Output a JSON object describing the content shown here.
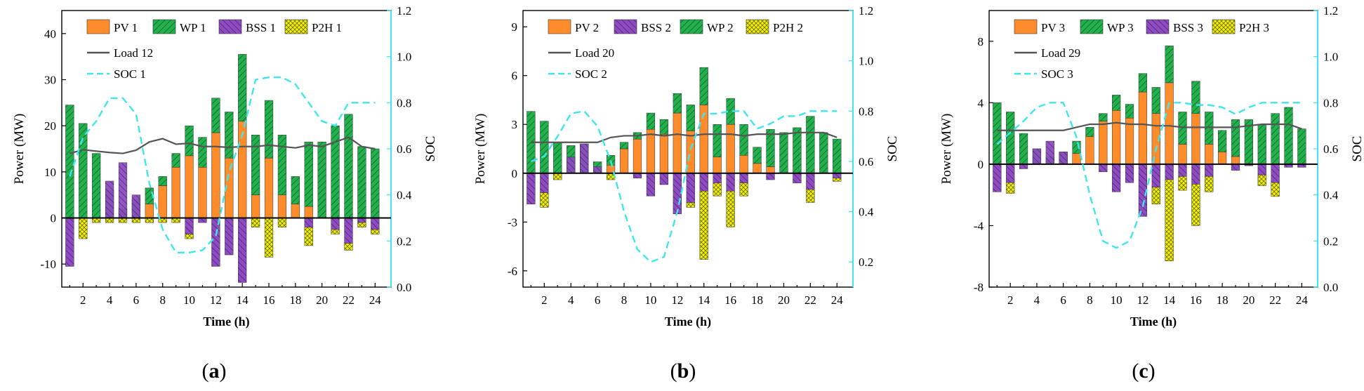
{
  "colors": {
    "pv": "#ff8c2a",
    "wp": "#22b14c",
    "bss": "#8e4cc0",
    "p2h": "#f2f000",
    "load": "#555555",
    "soc": "#3fe6ec",
    "axis": "#000000"
  },
  "chart_data": [
    {
      "type": "bar",
      "panel_label": "a",
      "xlabel": "Time (h)",
      "ylabel": "Power (MW)",
      "y2label": "SOC",
      "ylim": [
        -15,
        45
      ],
      "yticks": [
        -10,
        0,
        10,
        20,
        30,
        40
      ],
      "y2lim": [
        0,
        1.2
      ],
      "y2ticks": [
        "0.0",
        "0.2",
        "0.4",
        "0.6",
        "0.8",
        "1.0",
        "1.2"
      ],
      "xticks": [
        2,
        4,
        6,
        8,
        10,
        12,
        14,
        16,
        18,
        20,
        22,
        24
      ],
      "legend": {
        "row1": [
          {
            "key": "pv",
            "label": "PV 1"
          },
          {
            "key": "wp",
            "label": "WP 1"
          },
          {
            "key": "bss",
            "label": "BSS 1"
          },
          {
            "key": "p2h",
            "label": "P2H 1"
          }
        ],
        "load_label": "Load 12",
        "soc_label": "SOC 1"
      },
      "pv": [
        0,
        0,
        0,
        0,
        0,
        0,
        3,
        7,
        11,
        13.5,
        11,
        18.5,
        13,
        21,
        5,
        13,
        5,
        3,
        2.5,
        0,
        0,
        0,
        0,
        0
      ],
      "wp": [
        24.5,
        20.5,
        14,
        6,
        2,
        4,
        3.5,
        2,
        3,
        6.5,
        6.5,
        7.5,
        10,
        14.5,
        13,
        12.5,
        13,
        6,
        14,
        16.5,
        20,
        22.5,
        15.5,
        15
      ],
      "bss_pos": [
        0,
        0,
        0,
        8,
        12,
        5,
        0,
        0,
        0,
        0,
        0,
        0,
        0,
        0,
        0,
        0,
        0,
        0,
        0,
        0,
        0,
        0,
        0,
        0
      ],
      "bss": [
        -10.5,
        0,
        0,
        0,
        0,
        0,
        0,
        0,
        0,
        -3.5,
        -1,
        -10.5,
        -8,
        -14,
        0,
        0,
        0,
        0,
        -2,
        0,
        -2.5,
        -5.5,
        -1,
        -2.5
      ],
      "p2h": [
        0,
        -4.5,
        -1,
        -1,
        -1,
        -1,
        -1,
        -1,
        -1,
        -1,
        0,
        0,
        0,
        0,
        -2,
        -8.5,
        -2,
        0,
        -4,
        0,
        -1,
        -1.5,
        -1,
        -1
      ],
      "load": [
        14,
        14.8,
        14.5,
        14.2,
        14.0,
        14.7,
        16.5,
        17.2,
        16.0,
        16.2,
        15.5,
        15.5,
        15.3,
        15.5,
        15.5,
        15.8,
        15.5,
        15.2,
        15.8,
        15.5,
        16.5,
        17.5,
        15.5,
        15.0
      ],
      "soc": [
        0.48,
        0.65,
        0.72,
        0.82,
        0.82,
        0.75,
        0.45,
        0.25,
        0.15,
        0.15,
        0.16,
        0.22,
        0.5,
        0.66,
        0.9,
        0.91,
        0.91,
        0.88,
        0.8,
        0.72,
        0.7,
        0.8,
        0.8,
        0.8
      ]
    },
    {
      "type": "bar",
      "panel_label": "b",
      "xlabel": "Time (h)",
      "ylabel": "Power (MW)",
      "y2label": "SOC",
      "ylim": [
        -7,
        10
      ],
      "yticks": [
        -6,
        -3,
        0,
        3,
        6,
        9
      ],
      "y2lim": [
        0.1,
        1.2
      ],
      "y2ticks": [
        "0.2",
        "0.4",
        "0.6",
        "0.8",
        "1.0",
        "1.2"
      ],
      "xticks": [
        2,
        4,
        6,
        8,
        10,
        12,
        14,
        16,
        18,
        20,
        22,
        24
      ],
      "legend": {
        "row1": [
          {
            "key": "pv",
            "label": "PV 2"
          },
          {
            "key": "bss",
            "label": "BSS 2"
          },
          {
            "key": "wp",
            "label": "WP 2"
          },
          {
            "key": "p2h",
            "label": "P2H 2"
          }
        ],
        "load_label": "Load 20",
        "soc_label": "SOC 2"
      },
      "pv": [
        0,
        0,
        0,
        0,
        0,
        0,
        0.5,
        1.5,
        2.1,
        2.7,
        2.4,
        3.7,
        2.6,
        4.2,
        1.0,
        3.0,
        1.1,
        0.6,
        0.4,
        0,
        0,
        0,
        0,
        0
      ],
      "wp": [
        3.8,
        3.2,
        1.9,
        1.7,
        1.8,
        0.7,
        0.6,
        0.4,
        0.4,
        1.0,
        0.9,
        1.2,
        1.6,
        2.3,
        2.0,
        1.6,
        1.9,
        1.0,
        2.3,
        2.5,
        2.8,
        3.5,
        2.5,
        2.1
      ],
      "bss_pos": [
        0,
        0,
        0,
        1.0,
        1.8,
        0.4,
        0,
        0,
        0,
        0,
        0,
        0,
        0,
        0,
        0,
        0,
        0,
        0,
        0,
        0,
        0,
        0,
        0,
        0
      ],
      "bss": [
        -1.9,
        -1.2,
        0,
        0,
        0,
        0,
        0,
        0,
        -0.3,
        -1.4,
        -0.7,
        -2.5,
        -1.8,
        -1.1,
        -0.6,
        -1.1,
        -0.6,
        0,
        -0.4,
        0,
        -0.6,
        -1.0,
        0,
        -0.3
      ],
      "p2h": [
        0,
        -0.9,
        -0.4,
        0,
        0,
        0,
        -0.4,
        0,
        0,
        0,
        0,
        0,
        -0.3,
        -4.2,
        -0.8,
        -2.2,
        -0.8,
        0,
        0,
        0,
        0,
        -0.8,
        0,
        -0.2
      ],
      "load": [
        1.9,
        1.9,
        1.9,
        1.9,
        1.9,
        1.9,
        2.2,
        2.3,
        2.3,
        2.4,
        2.3,
        2.4,
        2.3,
        2.4,
        2.4,
        2.4,
        2.3,
        2.4,
        2.4,
        2.4,
        2.5,
        2.5,
        2.5,
        2.2
      ],
      "soc": [
        0.6,
        0.62,
        0.7,
        0.79,
        0.8,
        0.74,
        0.6,
        0.4,
        0.25,
        0.2,
        0.22,
        0.4,
        0.65,
        0.79,
        0.79,
        0.8,
        0.8,
        0.73,
        0.75,
        0.78,
        0.78,
        0.8,
        0.8,
        0.8
      ]
    },
    {
      "type": "bar",
      "panel_label": "c",
      "xlabel": "Time (h)",
      "ylabel": "Power (MW)",
      "y2label": "SOC",
      "ylim": [
        -8,
        10
      ],
      "yticks": [
        -8,
        -4,
        0,
        4,
        8
      ],
      "y2lim": [
        0,
        1.2
      ],
      "y2ticks": [
        "0.0",
        "0.2",
        "0.4",
        "0.6",
        "0.8",
        "1.0",
        "1.2"
      ],
      "xticks": [
        2,
        4,
        6,
        8,
        10,
        12,
        14,
        16,
        18,
        20,
        22,
        24
      ],
      "legend": {
        "row1": [
          {
            "key": "pv",
            "label": "PV 3"
          },
          {
            "key": "wp",
            "label": "WP 3"
          },
          {
            "key": "bss",
            "label": "BSS 3"
          },
          {
            "key": "p2h",
            "label": "P2H 3"
          }
        ],
        "load_label": "Load 29",
        "soc_label": "SOC 3"
      },
      "pv": [
        0,
        0,
        0,
        0,
        0,
        0,
        0.7,
        1.8,
        2.8,
        3.5,
        3.0,
        4.7,
        3.3,
        5.3,
        1.3,
        3.3,
        1.3,
        0.8,
        0.5,
        0,
        0,
        0,
        0,
        0
      ],
      "wp": [
        4.0,
        3.4,
        2.0,
        1.0,
        0.5,
        0.8,
        0.8,
        0.6,
        0.5,
        1.0,
        0.9,
        1.2,
        1.7,
        2.4,
        2.1,
        2.1,
        2.1,
        1.4,
        2.4,
        2.9,
        2.6,
        3.3,
        3.7,
        2.3
      ],
      "bss_pos": [
        0,
        0,
        0,
        1.0,
        1.5,
        0.8,
        0,
        0,
        0,
        0,
        0,
        0,
        0,
        0,
        0,
        0,
        0,
        0,
        0,
        0,
        0,
        0,
        0,
        0
      ],
      "bss": [
        -1.8,
        -1.2,
        -0.3,
        0,
        0,
        0,
        0,
        0,
        -0.5,
        -1.8,
        -1.2,
        -3.4,
        -1.5,
        -1.0,
        -0.8,
        -1.3,
        -0.8,
        0,
        -0.4,
        -0.1,
        -0.7,
        -1.2,
        -0.2,
        -0.2
      ],
      "p2h": [
        0,
        -0.7,
        0,
        0,
        0,
        0,
        0,
        0,
        0,
        0,
        0,
        0,
        -1.1,
        -5.3,
        -0.9,
        -2.7,
        -1.0,
        0,
        0,
        0,
        -0.7,
        -0.9,
        0,
        0
      ],
      "load": [
        2.2,
        2.2,
        2.2,
        2.2,
        2.2,
        2.2,
        2.4,
        2.6,
        2.6,
        2.7,
        2.6,
        2.6,
        2.5,
        2.5,
        2.4,
        2.4,
        2.4,
        2.4,
        2.4,
        2.5,
        2.6,
        2.6,
        2.6,
        2.3
      ],
      "soc": [
        0.62,
        0.67,
        0.72,
        0.78,
        0.8,
        0.8,
        0.65,
        0.4,
        0.2,
        0.17,
        0.2,
        0.35,
        0.6,
        0.8,
        0.8,
        0.79,
        0.79,
        0.78,
        0.75,
        0.78,
        0.8,
        0.8,
        0.8,
        0.8
      ]
    }
  ]
}
